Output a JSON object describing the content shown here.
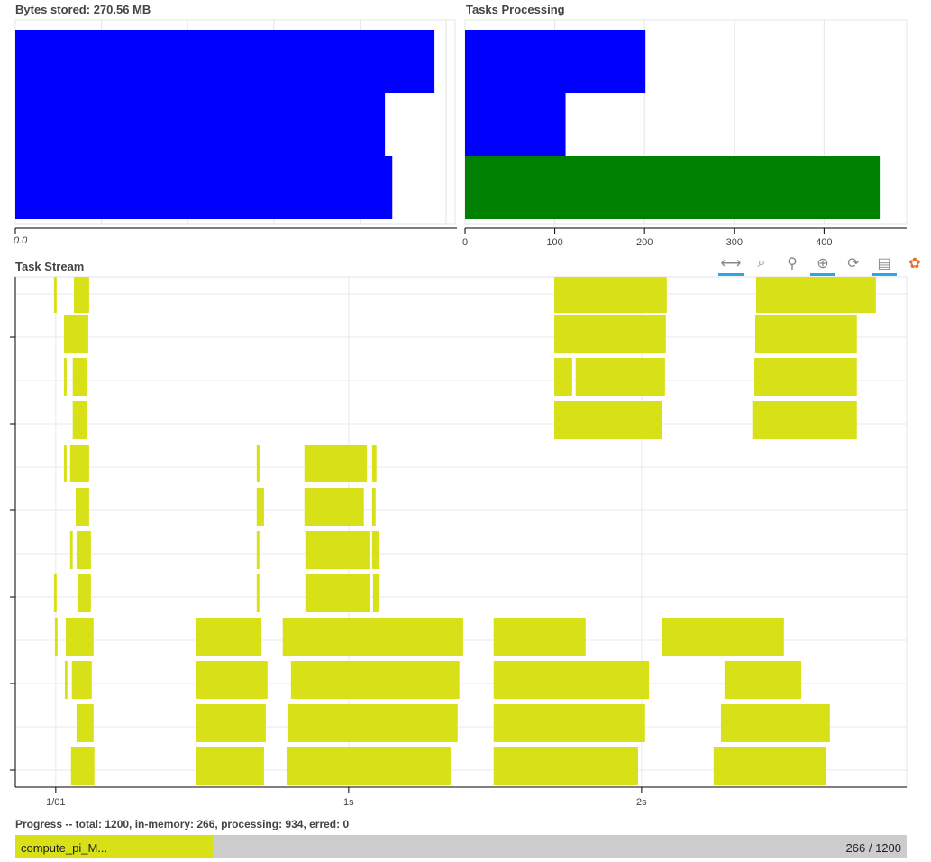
{
  "bytes_stored": {
    "title": "Bytes stored: 270.56 MB",
    "tick_label": "0.0",
    "bar_color": "#0000ff",
    "chart_data": {
      "type": "bar",
      "orientation": "horizontal",
      "values": [
        97.3,
        85.8,
        87.5
      ],
      "xlim": [
        0,
        100
      ],
      "grid": true
    }
  },
  "tasks_processing": {
    "title": "Tasks Processing",
    "chart_data": {
      "type": "bar",
      "orientation": "horizontal",
      "values": [
        201,
        112,
        462
      ],
      "colors": [
        "#0000ff",
        "#0000ff",
        "#008000"
      ],
      "xlim": [
        0,
        492
      ],
      "xticks": [
        0,
        100,
        200,
        300,
        400
      ],
      "grid": true
    }
  },
  "task_stream": {
    "title": "Task Stream",
    "color": "#d8e117",
    "toolbar": [
      {
        "icon": "pan-icon",
        "glyph": "⟷",
        "active": true
      },
      {
        "icon": "box-zoom-icon",
        "glyph": "⌕",
        "active": false
      },
      {
        "icon": "wheel-zoom-icon",
        "glyph": "⚲",
        "active": false
      },
      {
        "icon": "zoom-in-icon",
        "glyph": "⊕",
        "active": true
      },
      {
        "icon": "reset-icon",
        "glyph": "⟳",
        "active": false
      },
      {
        "icon": "hover-icon",
        "glyph": "▤",
        "active": true
      },
      {
        "icon": "bokeh-logo-icon",
        "glyph": "✿",
        "active": false
      }
    ],
    "chart_data": {
      "type": "gantt",
      "xlim": [
        -0.138,
        2.905
      ],
      "xticks": [
        {
          "value": 0,
          "label": "1/01"
        },
        {
          "value": 1,
          "label": "1s"
        },
        {
          "value": 2,
          "label": "2s"
        }
      ],
      "rows": 12,
      "grid": true,
      "tasks": [
        [
          [
            -0.006,
            0.003
          ],
          [
            0.062,
            0.114
          ],
          [
            1.702,
            2.086
          ],
          [
            2.391,
            2.8
          ]
        ],
        [
          [
            0.028,
            0.111
          ],
          [
            1.702,
            2.083
          ],
          [
            2.388,
            2.735
          ]
        ],
        [
          [
            0.028,
            0.037
          ],
          [
            0.058,
            0.108
          ],
          [
            1.702,
            1.763
          ],
          [
            1.775,
            2.08
          ],
          [
            2.385,
            2.735
          ]
        ],
        [
          [
            0.058,
            0.108
          ],
          [
            1.702,
            2.071
          ],
          [
            2.378,
            2.735
          ]
        ],
        [
          [
            0.028,
            0.037
          ],
          [
            0.049,
            0.114
          ],
          [
            0.686,
            0.698
          ],
          [
            0.849,
            1.062
          ],
          [
            1.08,
            1.095
          ]
        ],
        [
          [
            0.068,
            0.114
          ],
          [
            0.686,
            0.711
          ],
          [
            0.849,
            1.052
          ],
          [
            1.08,
            1.092
          ]
        ],
        [
          [
            0.049,
            0.058
          ],
          [
            0.071,
            0.12
          ],
          [
            0.686,
            0.695
          ],
          [
            0.852,
            1.071
          ],
          [
            1.08,
            1.105
          ]
        ],
        [
          [
            -0.006,
            0.003
          ],
          [
            0.074,
            0.12
          ],
          [
            0.686,
            0.695
          ],
          [
            0.852,
            1.074
          ],
          [
            1.083,
            1.105
          ]
        ],
        [
          [
            -0.003,
            0.006
          ],
          [
            0.034,
            0.129
          ],
          [
            0.48,
            0.702
          ],
          [
            0.775,
            1.391
          ],
          [
            1.495,
            1.809
          ],
          [
            2.068,
            2.486
          ]
        ],
        [
          [
            0.031,
            0.04
          ],
          [
            0.055,
            0.123
          ],
          [
            0.48,
            0.723
          ],
          [
            0.803,
            1.378
          ],
          [
            1.495,
            2.025
          ],
          [
            2.283,
            2.545
          ]
        ],
        [
          [
            0.071,
            0.129
          ],
          [
            0.48,
            0.717
          ],
          [
            0.791,
            1.372
          ],
          [
            1.495,
            2.012
          ],
          [
            2.271,
            2.643
          ]
        ],
        [
          [
            0.052,
            0.132
          ],
          [
            0.48,
            0.711
          ],
          [
            0.788,
            1.348
          ],
          [
            1.495,
            1.988
          ],
          [
            2.246,
            2.631
          ]
        ]
      ]
    }
  },
  "progress": {
    "summary": "Progress -- total: 1200, in-memory: 266, processing: 934, erred: 0",
    "label": "compute_pi_M...",
    "count": "266 / 1200",
    "fraction": 0.2217,
    "color": "#d8e117"
  }
}
